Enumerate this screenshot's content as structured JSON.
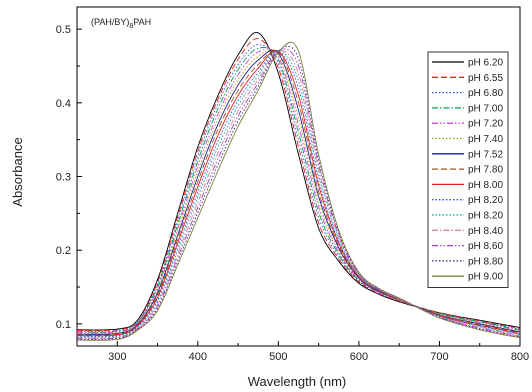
{
  "chart_data": {
    "type": "line",
    "annotation": "(PAH/BY)",
    "annotation_sub": "8",
    "annotation_tail": "PAH",
    "xlabel": "Wavelength (nm)",
    "ylabel": "Absorbance",
    "xlim": [
      250,
      800
    ],
    "ylim": [
      0.07,
      0.53
    ],
    "xticks": [
      300,
      400,
      500,
      600,
      700,
      800
    ],
    "yticks": [
      0.1,
      0.2,
      0.3,
      0.4,
      0.5
    ],
    "xtick_labels": [
      "300",
      "400",
      "500",
      "600",
      "700",
      "800"
    ],
    "ytick_labels": [
      "0.1",
      "0.2",
      "0.3",
      "0.4",
      "0.5"
    ],
    "legend_position": "right",
    "grid": false,
    "x": [
      250,
      300,
      325,
      350,
      375,
      400,
      425,
      450,
      475,
      500,
      525,
      550,
      575,
      600,
      625,
      650,
      700,
      750,
      800
    ],
    "series": [
      {
        "name": "pH 6.20",
        "color": "#000000",
        "dash": "",
        "values": [
          0.092,
          0.093,
          0.105,
          0.16,
          0.25,
          0.34,
          0.41,
          0.465,
          0.495,
          0.44,
          0.33,
          0.23,
          0.185,
          0.155,
          0.14,
          0.13,
          0.115,
          0.105,
          0.095
        ]
      },
      {
        "name": "pH 6.55",
        "color": "#e02020",
        "dash": "6,3",
        "values": [
          0.091,
          0.092,
          0.104,
          0.157,
          0.245,
          0.334,
          0.405,
          0.459,
          0.487,
          0.447,
          0.34,
          0.237,
          0.188,
          0.157,
          0.141,
          0.131,
          0.115,
          0.104,
          0.094
        ]
      },
      {
        "name": "pH 6.80",
        "color": "#3050e0",
        "dash": "1.5,2",
        "values": [
          0.09,
          0.091,
          0.103,
          0.154,
          0.24,
          0.328,
          0.399,
          0.452,
          0.479,
          0.453,
          0.35,
          0.245,
          0.191,
          0.158,
          0.142,
          0.131,
          0.114,
          0.103,
          0.093
        ]
      },
      {
        "name": "pH 7.00",
        "color": "#00a050",
        "dash": "6,2,1.5,2",
        "values": [
          0.089,
          0.09,
          0.102,
          0.151,
          0.235,
          0.321,
          0.392,
          0.445,
          0.474,
          0.458,
          0.36,
          0.252,
          0.194,
          0.159,
          0.143,
          0.132,
          0.114,
          0.103,
          0.092
        ]
      },
      {
        "name": "pH 7.20",
        "color": "#e040d0",
        "dash": "6,2,1.5,2,1.5,2",
        "values": [
          0.088,
          0.089,
          0.101,
          0.148,
          0.23,
          0.314,
          0.385,
          0.438,
          0.469,
          0.462,
          0.37,
          0.259,
          0.197,
          0.16,
          0.143,
          0.132,
          0.113,
          0.102,
          0.091
        ]
      },
      {
        "name": "pH 7.40",
        "color": "#a0a000",
        "dash": "1.5,2",
        "values": [
          0.087,
          0.088,
          0.1,
          0.145,
          0.225,
          0.307,
          0.378,
          0.431,
          0.463,
          0.465,
          0.38,
          0.266,
          0.2,
          0.161,
          0.144,
          0.132,
          0.113,
          0.101,
          0.09
        ]
      },
      {
        "name": "pH 7.52",
        "color": "#202090",
        "dash": "",
        "values": [
          0.086,
          0.087,
          0.099,
          0.142,
          0.22,
          0.3,
          0.371,
          0.424,
          0.458,
          0.467,
          0.39,
          0.273,
          0.203,
          0.162,
          0.144,
          0.133,
          0.112,
          0.1,
          0.089
        ]
      },
      {
        "name": "pH 7.80",
        "color": "#a05020",
        "dash": "6,3",
        "values": [
          0.085,
          0.086,
          0.098,
          0.139,
          0.215,
          0.293,
          0.364,
          0.417,
          0.452,
          0.469,
          0.4,
          0.28,
          0.206,
          0.163,
          0.145,
          0.133,
          0.112,
          0.099,
          0.088
        ]
      },
      {
        "name": "pH 8.00",
        "color": "#e02020",
        "dash": "",
        "values": [
          0.084,
          0.085,
          0.097,
          0.136,
          0.21,
          0.286,
          0.356,
          0.41,
          0.447,
          0.47,
          0.41,
          0.288,
          0.209,
          0.164,
          0.145,
          0.133,
          0.111,
          0.098,
          0.087
        ]
      },
      {
        "name": "pH 8.20",
        "color": "#3050e0",
        "dash": "1.5,2",
        "values": [
          0.083,
          0.084,
          0.096,
          0.133,
          0.205,
          0.279,
          0.348,
          0.403,
          0.442,
          0.47,
          0.42,
          0.295,
          0.212,
          0.165,
          0.146,
          0.134,
          0.111,
          0.097,
          0.086
        ]
      },
      {
        "name": "pH 8.20",
        "color": "#00a0a0",
        "dash": "1.5,2",
        "values": [
          0.082,
          0.083,
          0.095,
          0.13,
          0.2,
          0.272,
          0.34,
          0.396,
          0.437,
          0.471,
          0.43,
          0.302,
          0.215,
          0.166,
          0.146,
          0.134,
          0.11,
          0.096,
          0.085
        ]
      },
      {
        "name": "pH 8.40",
        "color": "#e080a0",
        "dash": "6,2,1.5,2",
        "values": [
          0.081,
          0.082,
          0.094,
          0.127,
          0.195,
          0.265,
          0.332,
          0.389,
          0.432,
          0.471,
          0.44,
          0.309,
          0.218,
          0.167,
          0.147,
          0.134,
          0.11,
          0.095,
          0.084
        ]
      },
      {
        "name": "pH 8.60",
        "color": "#a040c0",
        "dash": "6,2,1.5,2,1.5,2",
        "values": [
          0.08,
          0.081,
          0.093,
          0.124,
          0.19,
          0.258,
          0.324,
          0.382,
          0.427,
          0.471,
          0.45,
          0.316,
          0.221,
          0.168,
          0.147,
          0.135,
          0.109,
          0.094,
          0.083
        ]
      },
      {
        "name": "pH 8.80",
        "color": "#302080",
        "dash": "1.5,2",
        "values": [
          0.079,
          0.08,
          0.092,
          0.121,
          0.185,
          0.251,
          0.316,
          0.375,
          0.422,
          0.47,
          0.46,
          0.323,
          0.224,
          0.169,
          0.148,
          0.135,
          0.109,
          0.093,
          0.082
        ]
      },
      {
        "name": "pH 9.00",
        "color": "#808040",
        "dash": "",
        "values": [
          0.078,
          0.079,
          0.091,
          0.118,
          0.18,
          0.244,
          0.308,
          0.368,
          0.417,
          0.469,
          0.47,
          0.33,
          0.227,
          0.17,
          0.148,
          0.135,
          0.108,
          0.092,
          0.081
        ]
      }
    ]
  }
}
